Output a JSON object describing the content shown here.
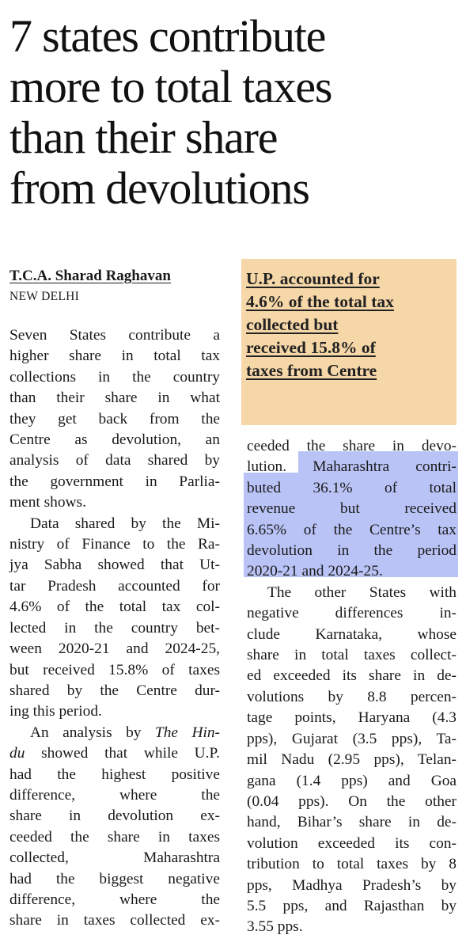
{
  "headline": {
    "lines": [
      "7 states contribute",
      "more to total taxes",
      "than their share",
      "from devolutions"
    ]
  },
  "byline": "T.C.A. Sharad Raghavan",
  "dateline": "NEW DELHI",
  "pullquote": {
    "lines": [
      "U.P. accounted for",
      "4.6% of the total tax",
      "collected but",
      "received 15.8% of",
      "taxes from Centre"
    ]
  },
  "left_column": {
    "p1": [
      "Seven States contribute a",
      "higher share in total tax",
      "collections in the country",
      "than their share in what",
      "they get back from the",
      "Centre as devolution, an",
      "analysis of data shared by",
      "the government in Parlia-",
      "ment shows."
    ],
    "p2": [
      "Data shared by the Mi-",
      "nistry of Finance to the Ra-",
      "jya Sabha showed that Ut-",
      "tar Pradesh accounted for",
      "4.6% of the total tax col-",
      "lected in the country bet-",
      "ween 2020-21 and 2024-25,",
      "but received 15.8% of taxes",
      "shared by the Centre dur-",
      "ing this period."
    ],
    "p3_first_a": "An analysis by ",
    "p3_first_em": "The Hin-",
    "p3_second_em": "du",
    "p3_second_b": " showed that while U.P.",
    "p3_rest": [
      "had the highest positive",
      "difference, where the",
      "share in devolution ex-",
      "ceeded the share in taxes",
      "collected, Maharashtra",
      "had the biggest negative",
      "difference, where the",
      "share in taxes collected ex-"
    ]
  },
  "right_column": {
    "p1": [
      "ceeded the share in devo-",
      "lution. Maharashtra contri-",
      "buted 36.1% of total",
      "revenue but received",
      "6.65% of the Centre’s tax",
      "devolution in the period",
      "2020-21 and 2024-25."
    ],
    "p2": [
      "The other States with",
      "negative differences in-",
      "clude Karnataka, whose",
      "share in total taxes collect-",
      "ed exceeded its share in de-",
      "volutions by 8.8 percen-",
      "tage points, Haryana (4.3",
      "pps), Gujarat (3.5 pps), Ta-",
      "mil Nadu (2.95 pps), Telan-",
      "gana (1.4 pps) and Goa",
      "(0.04 pps). On the other",
      "hand, Bihar’s share in de-",
      "volution exceeded its con-",
      "tribution to total taxes by 8",
      "pps, Madhya Pradesh’s by",
      "5.5 pps, and Rajasthan by",
      "3.55 pps."
    ]
  },
  "colors": {
    "pullquote_bg": "#f6d7a8",
    "highlight": "#b9c3f6"
  }
}
